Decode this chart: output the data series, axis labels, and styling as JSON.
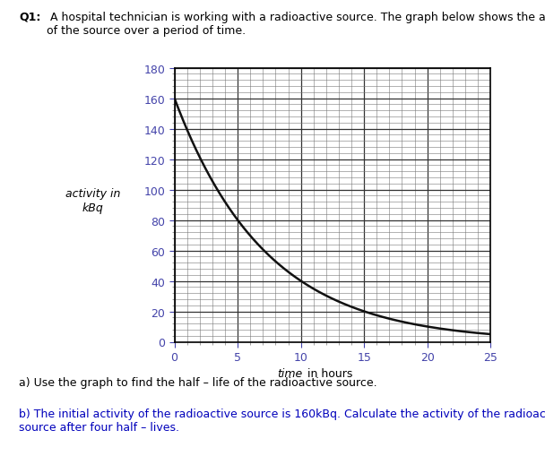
{
  "title_bold": "Q1:",
  "title_text": " A hospital technician is working with a radioactive source. The graph below shows the activity\nof the source over a period of time.",
  "ylabel_line1": "activity in",
  "ylabel_line2": "kBq",
  "xlabel_italic": "time",
  "xlabel_suffix": " in hours",
  "xlim": [
    0,
    25
  ],
  "ylim": [
    0,
    180
  ],
  "xticks": [
    0,
    5,
    10,
    15,
    20,
    25
  ],
  "yticks": [
    0,
    20,
    40,
    60,
    80,
    100,
    120,
    140,
    160,
    180
  ],
  "minor_xtick_interval": 1,
  "minor_ytick_interval": 4,
  "initial_activity": 160,
  "half_life": 5,
  "curve_color": "#111111",
  "curve_linewidth": 1.8,
  "grid_major_color": "#333333",
  "grid_minor_color": "#777777",
  "grid_major_linewidth": 0.9,
  "grid_minor_linewidth": 0.4,
  "background_color": "#ffffff",
  "plot_bg_color": "#ffffff",
  "answer_a_text": "a) Use the graph to find the half – life of the radioactive source.",
  "answer_b_text": "b) The initial activity of the radioactive source is 160kBq. Calculate the activity of the radioactive\nsource after four half – lives.",
  "answer_b_color": "#0000bb",
  "answer_a_color": "#000000",
  "tick_label_color": "#4444aa",
  "fig_width": 6.08,
  "fig_height": 5.1,
  "dpi": 100
}
